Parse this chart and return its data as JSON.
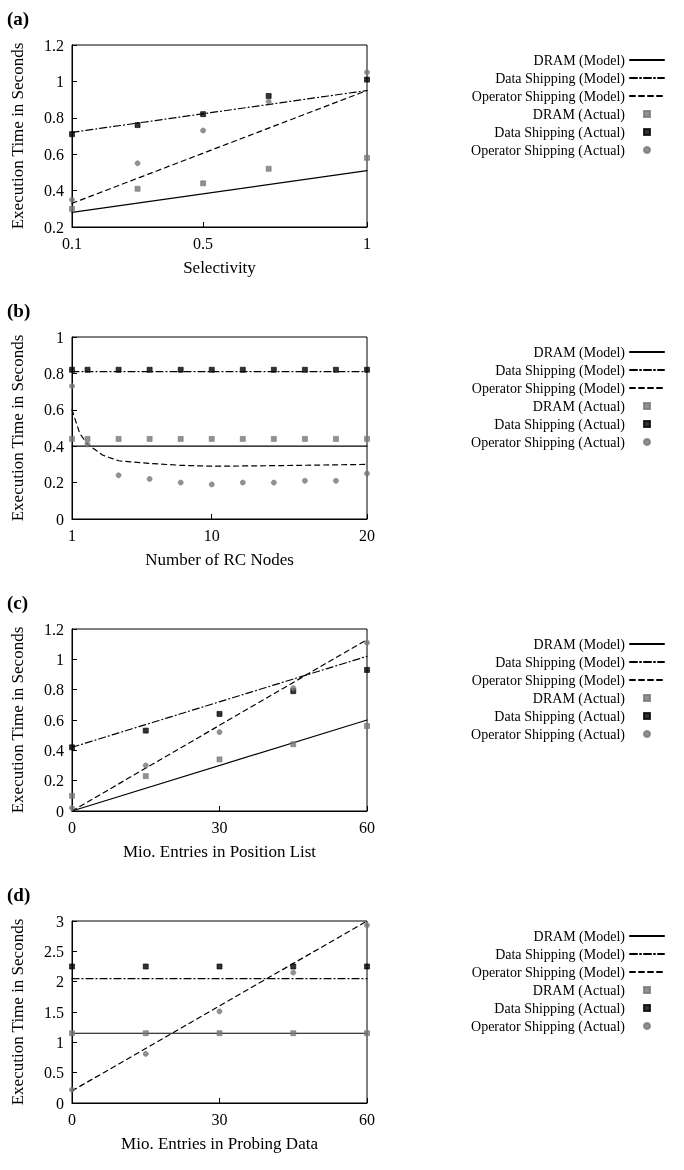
{
  "chart_data": [
    {
      "type": "line",
      "title": "(a)",
      "xlabel": "Selectivity",
      "ylabel": "Execution Time in Seconds",
      "xlim": [
        0.1,
        1
      ],
      "xticks": [
        0.1,
        0.5,
        1
      ],
      "ylim": [
        0.2,
        1.2
      ],
      "yticks": [
        0.2,
        0.4,
        0.6,
        0.8,
        1,
        1.2
      ],
      "grid": false,
      "legend": "right",
      "series": [
        {
          "name": "DRAM (Model)",
          "type": "line",
          "color": "#000000",
          "line_style": "solid",
          "marker": "none",
          "x": [
            0.1,
            1
          ],
          "values": [
            0.28,
            0.51
          ]
        },
        {
          "name": "Data Shipping (Model)",
          "type": "line",
          "color": "#000000",
          "line_style": "dashdot",
          "marker": "none",
          "x": [
            0.1,
            1
          ],
          "values": [
            0.72,
            0.95
          ]
        },
        {
          "name": "Operator Shipping (Model)",
          "type": "line",
          "color": "#000000",
          "line_style": "dashed",
          "marker": "none",
          "x": [
            0.1,
            1
          ],
          "values": [
            0.33,
            0.95
          ]
        },
        {
          "name": "DRAM (Actual)",
          "type": "scatter",
          "color": "#777777",
          "marker": "square",
          "x": [
            0.1,
            0.3,
            0.5,
            0.7,
            1
          ],
          "values": [
            0.3,
            0.41,
            0.44,
            0.52,
            0.58
          ]
        },
        {
          "name": "Data Shipping (Actual)",
          "type": "scatter",
          "color": "#000000",
          "marker": "square",
          "x": [
            0.1,
            0.3,
            0.5,
            0.7,
            1
          ],
          "values": [
            0.71,
            0.76,
            0.82,
            0.92,
            1.01
          ]
        },
        {
          "name": "Operator Shipping (Actual)",
          "type": "scatter",
          "color": "#777777",
          "marker": "circle",
          "x": [
            0.1,
            0.3,
            0.5,
            0.7,
            1
          ],
          "values": [
            0.35,
            0.55,
            0.73,
            0.89,
            1.05
          ]
        }
      ]
    },
    {
      "type": "line",
      "title": "(b)",
      "xlabel": "Number of RC Nodes",
      "ylabel": "Execution Time in Seconds",
      "xlim": [
        1,
        20
      ],
      "xticks": [
        1,
        10,
        20
      ],
      "ylim": [
        0,
        1
      ],
      "yticks": [
        0,
        0.2,
        0.4,
        0.6,
        0.8,
        1
      ],
      "grid": false,
      "legend": "right",
      "series": [
        {
          "name": "DRAM (Model)",
          "type": "line",
          "color": "#000000",
          "line_style": "solid",
          "marker": "none",
          "x": [
            1,
            20
          ],
          "values": [
            0.4,
            0.4
          ]
        },
        {
          "name": "Data Shipping (Model)",
          "type": "line",
          "color": "#000000",
          "line_style": "dashdot",
          "marker": "none",
          "x": [
            1,
            20
          ],
          "values": [
            0.81,
            0.81
          ]
        },
        {
          "name": "Operator Shipping (Model)",
          "type": "line",
          "color": "#000000",
          "line_style": "dashed",
          "marker": "none",
          "x": [
            1,
            1.5,
            2,
            3,
            4,
            6,
            8,
            10,
            14,
            20
          ],
          "values": [
            0.6,
            0.47,
            0.41,
            0.35,
            0.32,
            0.305,
            0.295,
            0.29,
            0.293,
            0.3
          ]
        },
        {
          "name": "DRAM (Actual)",
          "type": "scatter",
          "color": "#777777",
          "marker": "square",
          "x": [
            1,
            2,
            4,
            6,
            8,
            10,
            12,
            14,
            16,
            18,
            20
          ],
          "values": [
            0.44,
            0.44,
            0.44,
            0.44,
            0.44,
            0.44,
            0.44,
            0.44,
            0.44,
            0.44,
            0.44
          ]
        },
        {
          "name": "Data Shipping (Actual)",
          "type": "scatter",
          "color": "#000000",
          "marker": "square",
          "x": [
            1,
            2,
            4,
            6,
            8,
            10,
            12,
            14,
            16,
            18,
            20
          ],
          "values": [
            0.82,
            0.82,
            0.82,
            0.82,
            0.82,
            0.82,
            0.82,
            0.82,
            0.82,
            0.82,
            0.82
          ]
        },
        {
          "name": "Operator Shipping (Actual)",
          "type": "scatter",
          "color": "#777777",
          "marker": "circle",
          "x": [
            1,
            2,
            4,
            6,
            8,
            10,
            12,
            14,
            16,
            18,
            20
          ],
          "values": [
            0.73,
            0.41,
            0.24,
            0.22,
            0.2,
            0.19,
            0.2,
            0.2,
            0.21,
            0.21,
            0.25
          ]
        }
      ]
    },
    {
      "type": "line",
      "title": "(c)",
      "xlabel": "Mio. Entries in Position List",
      "ylabel": "Execution Time in Seconds",
      "xlim": [
        0,
        60
      ],
      "xticks": [
        0,
        30,
        60
      ],
      "ylim": [
        0,
        1.2
      ],
      "yticks": [
        0,
        0.2,
        0.4,
        0.6,
        0.8,
        1,
        1.2
      ],
      "grid": false,
      "legend": "right",
      "series": [
        {
          "name": "DRAM (Model)",
          "type": "line",
          "color": "#000000",
          "line_style": "solid",
          "marker": "none",
          "x": [
            0,
            60
          ],
          "values": [
            0,
            0.6
          ]
        },
        {
          "name": "Data Shipping (Model)",
          "type": "line",
          "color": "#000000",
          "line_style": "dashdot",
          "marker": "none",
          "x": [
            0,
            60
          ],
          "values": [
            0.42,
            1.02
          ]
        },
        {
          "name": "Operator Shipping (Model)",
          "type": "line",
          "color": "#000000",
          "line_style": "dashed",
          "marker": "none",
          "x": [
            0,
            60
          ],
          "values": [
            0,
            1.13
          ]
        },
        {
          "name": "DRAM (Actual)",
          "type": "scatter",
          "color": "#777777",
          "marker": "square",
          "x": [
            0,
            15,
            30,
            45,
            60
          ],
          "values": [
            0.1,
            0.23,
            0.34,
            0.44,
            0.56
          ]
        },
        {
          "name": "Data Shipping (Actual)",
          "type": "scatter",
          "color": "#000000",
          "marker": "square",
          "x": [
            0,
            15,
            30,
            45,
            60
          ],
          "values": [
            0.42,
            0.53,
            0.64,
            0.79,
            0.93
          ]
        },
        {
          "name": "Operator Shipping (Actual)",
          "type": "scatter",
          "color": "#777777",
          "marker": "circle",
          "x": [
            0,
            15,
            30,
            45,
            60
          ],
          "values": [
            0.02,
            0.3,
            0.52,
            0.81,
            1.11
          ]
        }
      ]
    },
    {
      "type": "line",
      "title": "(d)",
      "xlabel": "Mio. Entries in Probing Data",
      "ylabel": "Execution Time in Seconds",
      "xlim": [
        0,
        60
      ],
      "xticks": [
        0,
        30,
        60
      ],
      "ylim": [
        0,
        3
      ],
      "yticks": [
        0,
        0.5,
        1,
        1.5,
        2,
        2.5,
        3
      ],
      "grid": false,
      "legend": "right",
      "series": [
        {
          "name": "DRAM (Model)",
          "type": "line",
          "color": "#000000",
          "line_style": "solid",
          "marker": "none",
          "x": [
            0,
            60
          ],
          "values": [
            1.15,
            1.15
          ]
        },
        {
          "name": "Data Shipping (Model)",
          "type": "line",
          "color": "#000000",
          "line_style": "dashdot",
          "marker": "none",
          "x": [
            0,
            60
          ],
          "values": [
            2.05,
            2.05
          ]
        },
        {
          "name": "Operator Shipping (Model)",
          "type": "line",
          "color": "#000000",
          "line_style": "dashed",
          "marker": "none",
          "x": [
            0,
            60
          ],
          "values": [
            0.2,
            3
          ]
        },
        {
          "name": "DRAM (Actual)",
          "type": "scatter",
          "color": "#777777",
          "marker": "square",
          "x": [
            0,
            15,
            30,
            45,
            60
          ],
          "values": [
            1.15,
            1.15,
            1.15,
            1.15,
            1.15
          ]
        },
        {
          "name": "Data Shipping (Actual)",
          "type": "scatter",
          "color": "#000000",
          "marker": "square",
          "x": [
            0,
            15,
            30,
            45,
            60
          ],
          "values": [
            2.25,
            2.25,
            2.25,
            2.25,
            2.25
          ]
        },
        {
          "name": "Operator Shipping (Actual)",
          "type": "scatter",
          "color": "#777777",
          "marker": "circle",
          "x": [
            0,
            15,
            30,
            45,
            60
          ],
          "values": [
            0.22,
            0.81,
            1.51,
            2.15,
            2.93
          ]
        }
      ]
    }
  ]
}
